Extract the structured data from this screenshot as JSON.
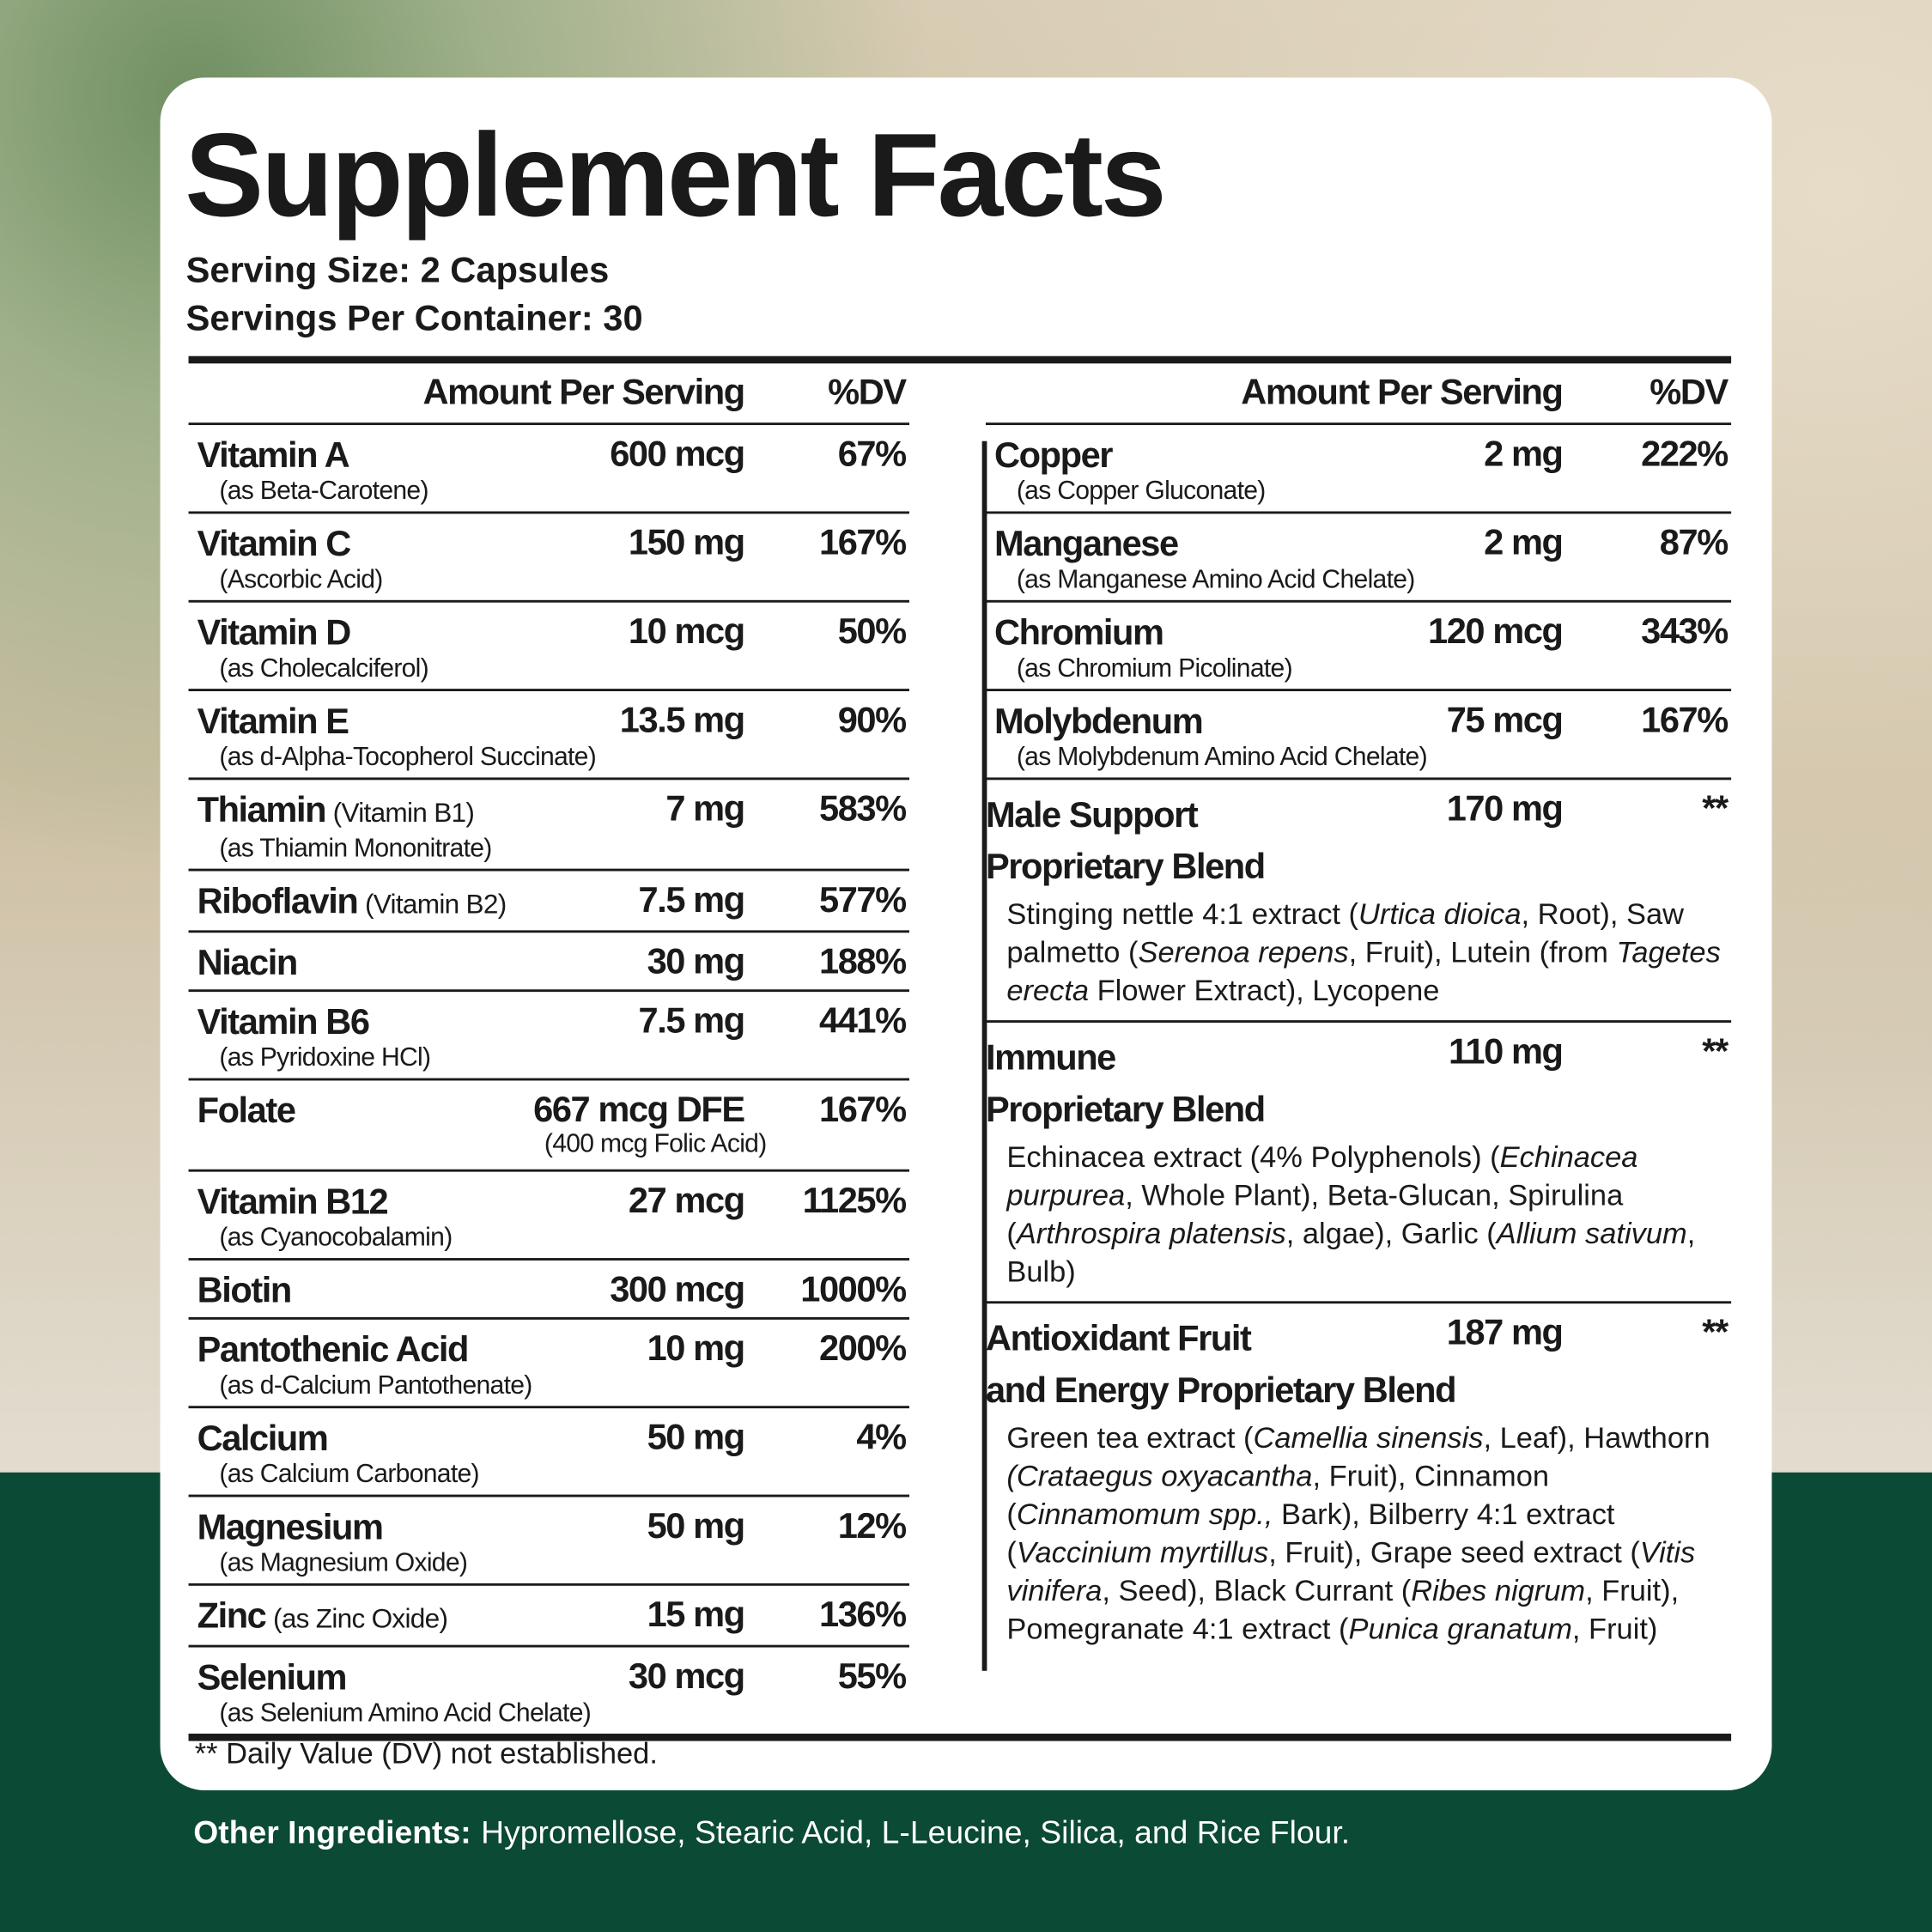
{
  "header": {
    "title": "Supplement Facts",
    "serving_size": "Serving Size: 2 Capsules",
    "servings_per_container": "Servings Per Container: 30"
  },
  "columns_header": {
    "amount": "Amount Per Serving",
    "dv": "%DV"
  },
  "left_rows": [
    {
      "name": "Vitamin A",
      "sub": "(as Beta-Carotene)",
      "amount": "600 mcg",
      "dv": "67%"
    },
    {
      "name": "Vitamin C",
      "sub": "(Ascorbic Acid)",
      "amount": "150 mg",
      "dv": "167%"
    },
    {
      "name": "Vitamin D",
      "sub": "(as Cholecalciferol)",
      "amount": "10 mcg",
      "dv": "50%"
    },
    {
      "name": "Vitamin E",
      "sub": "(as d-Alpha-Tocopherol Succinate)",
      "amount": "13.5 mg",
      "dv": "90%"
    },
    {
      "name": "Thiamin",
      "note": "(Vitamin B1)",
      "sub": "(as Thiamin Mononitrate)",
      "amount": "7 mg",
      "dv": "583%"
    },
    {
      "name": "Riboflavin",
      "note": "(Vitamin B2)",
      "amount": "7.5 mg",
      "dv": "577%"
    },
    {
      "name": "Niacin",
      "amount": "30 mg",
      "dv": "188%"
    },
    {
      "name": "Vitamin B6",
      "sub": "(as Pyridoxine HCl)",
      "amount": "7.5 mg",
      "dv": "441%"
    },
    {
      "name": "Folate",
      "amount": "667 mcg DFE",
      "amount_sub": "(400 mcg Folic Acid)",
      "dv": "167%"
    },
    {
      "name": "Vitamin B12",
      "sub": "(as Cyanocobalamin)",
      "amount": "27 mcg",
      "dv": "1125%"
    },
    {
      "name": "Biotin",
      "amount": "300 mcg",
      "dv": "1000%"
    },
    {
      "name": "Pantothenic Acid",
      "sub": "(as d-Calcium Pantothenate)",
      "amount": "10 mg",
      "dv": "200%"
    },
    {
      "name": "Calcium",
      "sub": "(as Calcium Carbonate)",
      "amount": "50 mg",
      "dv": "4%"
    },
    {
      "name": "Magnesium",
      "sub": "(as Magnesium Oxide)",
      "amount": "50 mg",
      "dv": "12%"
    },
    {
      "name": "Zinc",
      "note": "(as Zinc Oxide)",
      "amount": "15 mg",
      "dv": "136%"
    },
    {
      "name": "Selenium",
      "sub": "(as Selenium Amino Acid Chelate)",
      "amount": "30 mcg",
      "dv": "55%"
    }
  ],
  "right_rows": [
    {
      "name": "Copper",
      "sub": "(as Copper Gluconate)",
      "amount": "2 mg",
      "dv": "222%"
    },
    {
      "name": "Manganese",
      "sub": "(as Manganese Amino Acid Chelate)",
      "amount": "2 mg",
      "dv": "87%"
    },
    {
      "name": "Chromium",
      "sub": "(as Chromium Picolinate)",
      "amount": "120 mcg",
      "dv": "343%"
    },
    {
      "name": "Molybdenum",
      "sub": "(as Molybdenum Amino Acid Chelate)",
      "amount": "75 mcg",
      "dv": "167%"
    }
  ],
  "blends": [
    {
      "name": [
        "Male Support",
        "Proprietary Blend"
      ],
      "amount": "170 mg",
      "dv": "**",
      "description": [
        {
          "text": "Stinging nettle 4:1 extract ("
        },
        {
          "text": "Urtica dioica",
          "italic": true
        },
        {
          "text": ", Root), Saw palmetto ("
        },
        {
          "text": "Serenoa repens",
          "italic": true
        },
        {
          "text": ", Fruit), Lutein (from "
        },
        {
          "text": "Tagetes erecta",
          "italic": true
        },
        {
          "text": " Flower Extract), Lycopene"
        }
      ]
    },
    {
      "name": [
        "Immune",
        "Proprietary Blend"
      ],
      "amount": "110 mg",
      "dv": "**",
      "description": [
        {
          "text": "Echinacea extract (4% Polyphenols) ("
        },
        {
          "text": "Echinacea purpurea",
          "italic": true
        },
        {
          "text": ", Whole Plant), Beta-Glucan, Spirulina ("
        },
        {
          "text": "Arthrospira platensis",
          "italic": true
        },
        {
          "text": ", algae), Garlic ("
        },
        {
          "text": "Allium sativum",
          "italic": true
        },
        {
          "text": ", Bulb)"
        }
      ]
    },
    {
      "name": [
        "Antioxidant Fruit",
        "and Energy Proprietary Blend"
      ],
      "amount": "187 mg",
      "dv": "**",
      "description": [
        {
          "text": "Green tea extract ("
        },
        {
          "text": "Camellia sinensis",
          "italic": true
        },
        {
          "text": ", Leaf), Hawthorn "
        },
        {
          "text": "(Crataegus oxyacantha",
          "italic": true
        },
        {
          "text": ", Fruit), Cinnamon ("
        },
        {
          "text": "Cinnamomum spp.,",
          "italic": true
        },
        {
          "text": " Bark), Bilberry 4:1 extract ("
        },
        {
          "text": "Vaccinium myrtillus",
          "italic": true
        },
        {
          "text": ", Fruit), Grape seed extract ("
        },
        {
          "text": "Vitis vinifera",
          "italic": true
        },
        {
          "text": ", Seed), Black Currant ("
        },
        {
          "text": "Ribes nigrum",
          "italic": true
        },
        {
          "text": ", Fruit), Pomegranate 4:1 extract ("
        },
        {
          "text": "Punica granatum",
          "italic": true
        },
        {
          "text": ", Fruit)"
        }
      ]
    }
  ],
  "footnote": "** Daily Value (DV) not established.",
  "other_ingredients": {
    "label": "Other Ingredients:",
    "text": "Hypromellose, Stearic Acid, L-Leucine, Silica, and Rice Flour."
  }
}
